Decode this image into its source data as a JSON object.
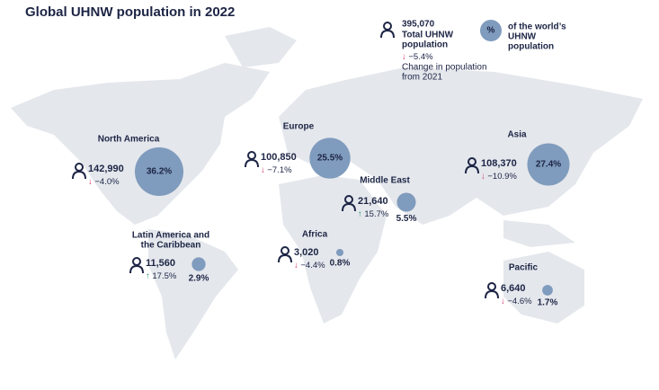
{
  "title": "Global UHNW population in 2022",
  "legend": {
    "population": "395,070",
    "population_caption": [
      "Total UHNW",
      "population"
    ],
    "change": "↓ −5.4%",
    "change_caption": [
      "Change in population",
      "from 2021"
    ],
    "share_symbol": "%",
    "share_caption": [
      "of the world’s",
      "UHNW",
      "population"
    ]
  },
  "regions": [
    {
      "name": [
        "North America"
      ],
      "population": "142,990",
      "change": "↓ −4.0%",
      "share": 36.2,
      "share_label": "36.2%"
    },
    {
      "name": [
        "Europe"
      ],
      "population": "100,850",
      "change": "↓ −7.1%",
      "share": 25.5,
      "share_label": "25.5%"
    },
    {
      "name": [
        "Middle East"
      ],
      "population": "21,640",
      "change": "↑ 15.7%",
      "share": 5.5,
      "share_label": "5.5%"
    },
    {
      "name": [
        "Asia"
      ],
      "population": "108,370",
      "change": "↓ −10.9%",
      "share": 27.4,
      "share_label": "27.4%"
    },
    {
      "name": [
        "Latin America and",
        "the Caribbean"
      ],
      "population": "11,560",
      "change": "↑ 17.5%",
      "share": 2.9,
      "share_label": "2.9%"
    },
    {
      "name": [
        "Africa"
      ],
      "population": "3,020",
      "change": "↓ −4.4%",
      "share": 0.8,
      "share_label": "0.8%"
    },
    {
      "name": [
        "Pacific"
      ],
      "population": "6,640",
      "change": "↓ −4.6%",
      "share": 1.7,
      "share_label": "1.7%"
    }
  ]
}
